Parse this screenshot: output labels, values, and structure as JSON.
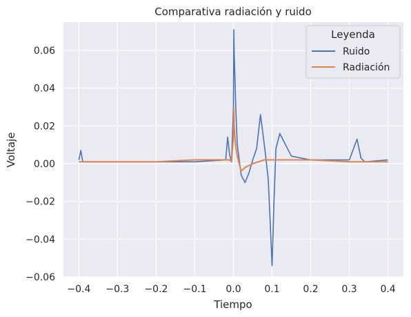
{
  "chart_data": {
    "type": "line",
    "title": "Comparativa radiación y ruido",
    "xlabel": "Tiempo",
    "ylabel": "Voltaje",
    "xlim": [
      -0.44,
      0.44
    ],
    "ylim": [
      -0.06,
      0.075
    ],
    "xticks": [
      -0.4,
      -0.3,
      -0.2,
      -0.1,
      0.0,
      0.1,
      0.2,
      0.3,
      0.4
    ],
    "xtick_labels": [
      "−0.4",
      "−0.3",
      "−0.2",
      "−0.1",
      "0.0",
      "0.1",
      "0.2",
      "0.3",
      "0.4"
    ],
    "yticks": [
      -0.06,
      -0.04,
      -0.02,
      0.0,
      0.02,
      0.04,
      0.06
    ],
    "ytick_labels": [
      "−0.06",
      "−0.04",
      "−0.02",
      "0.00",
      "0.02",
      "0.04",
      "0.06"
    ],
    "grid": true,
    "background": "#eaeaf2",
    "legend": {
      "title": "Leyenda",
      "placement": "top-right"
    },
    "series": [
      {
        "name": "Ruido",
        "color": "#4c72b0",
        "x": [
          -0.4,
          -0.395,
          -0.39,
          -0.38,
          -0.3,
          -0.2,
          -0.1,
          -0.02,
          -0.015,
          -0.01,
          -0.005,
          0.0,
          0.001,
          0.002,
          0.004,
          0.006,
          0.01,
          0.02,
          0.03,
          0.04,
          0.05,
          0.06,
          0.07,
          0.08,
          0.09,
          0.095,
          0.1,
          0.105,
          0.11,
          0.12,
          0.13,
          0.15,
          0.2,
          0.3,
          0.32,
          0.33,
          0.34,
          0.4
        ],
        "y": [
          0.002,
          0.007,
          0.001,
          0.001,
          0.001,
          0.001,
          0.001,
          0.002,
          0.014,
          0.005,
          0.001,
          0.03,
          0.071,
          0.058,
          0.045,
          0.03,
          0.01,
          -0.006,
          -0.01,
          -0.005,
          0.002,
          0.008,
          0.026,
          0.01,
          -0.008,
          -0.03,
          -0.054,
          -0.02,
          0.008,
          0.016,
          0.012,
          0.004,
          0.002,
          0.002,
          0.013,
          0.003,
          0.001,
          0.002
        ]
      },
      {
        "name": "Radiación",
        "color": "#dd8452",
        "x": [
          -0.4,
          -0.3,
          -0.2,
          -0.1,
          -0.01,
          -0.005,
          0.0,
          0.001,
          0.002,
          0.004,
          0.006,
          0.01,
          0.015,
          0.02,
          0.03,
          0.05,
          0.08,
          0.1,
          0.15,
          0.2,
          0.3,
          0.4
        ],
        "y": [
          0.001,
          0.001,
          0.001,
          0.002,
          0.002,
          0.001,
          0.014,
          0.029,
          0.02,
          0.014,
          0.009,
          0.004,
          0.0,
          -0.004,
          -0.002,
          0.0,
          0.002,
          0.002,
          0.002,
          0.002,
          0.001,
          0.001
        ]
      }
    ]
  }
}
